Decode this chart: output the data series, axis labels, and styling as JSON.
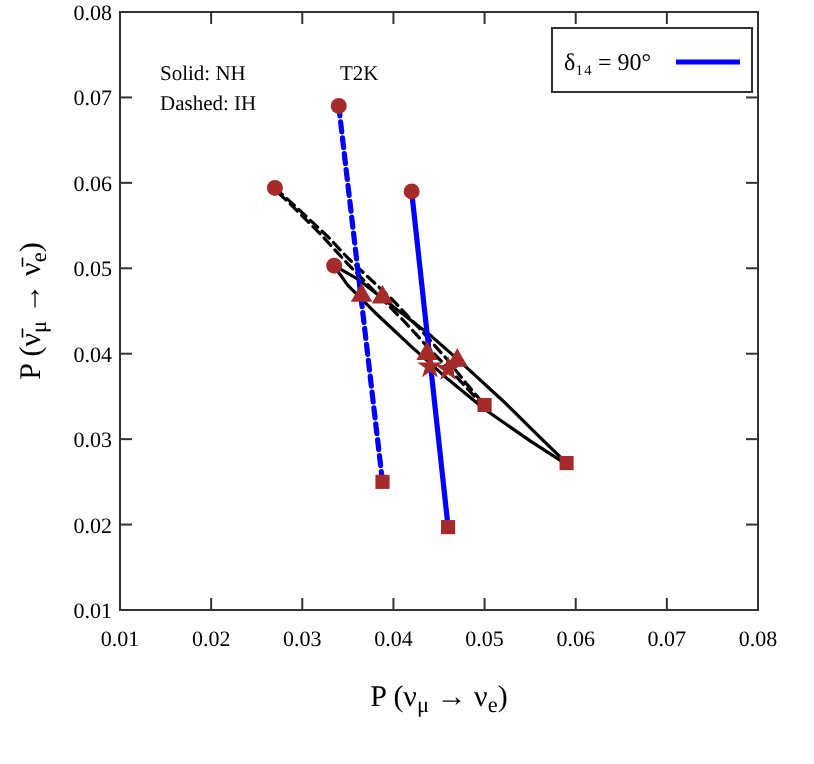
{
  "chart_data": {
    "type": "line",
    "xlabel": "P (ν$_{μ}$ → ν$_{e}$)",
    "ylabel": "P (ν̄$_{μ}$ → ν̄$_{e}$)",
    "xlim": [
      0.01,
      0.08
    ],
    "ylim": [
      0.01,
      0.08
    ],
    "xticks": [
      {
        "value": 0.01,
        "label": "0.01"
      },
      {
        "value": 0.02,
        "label": "0.02"
      },
      {
        "value": 0.03,
        "label": "0.03"
      },
      {
        "value": 0.04,
        "label": "0.04"
      },
      {
        "value": 0.05,
        "label": "0.05"
      },
      {
        "value": 0.06,
        "label": "0.06"
      },
      {
        "value": 0.07,
        "label": "0.07"
      },
      {
        "value": 0.08,
        "label": "0.08"
      }
    ],
    "yticks": [
      {
        "value": 0.01,
        "label": "0.01"
      },
      {
        "value": 0.02,
        "label": "0.02"
      },
      {
        "value": 0.03,
        "label": "0.03"
      },
      {
        "value": 0.04,
        "label": "0.04"
      },
      {
        "value": 0.05,
        "label": "0.05"
      },
      {
        "value": 0.06,
        "label": "0.06"
      },
      {
        "value": 0.07,
        "label": "0.07"
      },
      {
        "value": 0.08,
        "label": "0.08"
      }
    ],
    "grid": false,
    "legend": "top right",
    "annotations": [
      "Solid: NH",
      "Dashed: IH",
      "T2K"
    ],
    "series": [
      {
        "type": "line",
        "line_style": "solid",
        "color": "#000000",
        "x": [
          0.0335,
          0.036,
          0.04,
          0.044,
          0.047,
          0.052,
          0.056,
          0.059
        ],
        "values": [
          0.0503,
          0.0488,
          0.0455,
          0.0422,
          0.0394,
          0.0345,
          0.0303,
          0.0272
        ]
      },
      {
        "type": "line",
        "line_style": "solid",
        "color": "#000000",
        "x": [
          0.0338,
          0.035,
          0.038,
          0.042,
          0.046,
          0.05,
          0.055,
          0.0586
        ],
        "values": [
          0.0498,
          0.048,
          0.0448,
          0.0408,
          0.037,
          0.0335,
          0.0298,
          0.0273
        ]
      },
      {
        "type": "line",
        "line_style": "dashed",
        "color": "#000000",
        "x": [
          0.027,
          0.029,
          0.031,
          0.033,
          0.035,
          0.037,
          0.04,
          0.043,
          0.046,
          0.048,
          0.05
        ],
        "values": [
          0.0594,
          0.0575,
          0.0555,
          0.0535,
          0.0512,
          0.0492,
          0.0462,
          0.0428,
          0.0392,
          0.0365,
          0.034
        ]
      },
      {
        "type": "line",
        "line_style": "dashed",
        "color": "#000000",
        "x": [
          0.0274,
          0.029,
          0.032,
          0.035,
          0.038,
          0.041,
          0.044,
          0.047,
          0.0496
        ],
        "values": [
          0.0588,
          0.0572,
          0.054,
          0.0505,
          0.0472,
          0.044,
          0.0405,
          0.0372,
          0.0342
        ]
      },
      {
        "type": "line",
        "line_style": "solid",
        "color": "#0000ff",
        "name": "δ₁₄ = 90°",
        "x": [
          0.042,
          0.046
        ],
        "values": [
          0.059,
          0.0197
        ]
      },
      {
        "type": "line",
        "line_style": "dashed",
        "color": "#0000ff",
        "x": [
          0.034,
          0.0388
        ],
        "values": [
          0.069,
          0.025
        ]
      },
      {
        "type": "scatter",
        "marker": "circle",
        "color": "#a52a2a",
        "x": [
          0.027,
          0.0335,
          0.034,
          0.042
        ],
        "values": [
          0.0594,
          0.0503,
          0.069,
          0.059
        ]
      },
      {
        "type": "scatter",
        "marker": "square",
        "color": "#a52a2a",
        "x": [
          0.05,
          0.059,
          0.0388,
          0.046
        ],
        "values": [
          0.034,
          0.0272,
          0.025,
          0.0197
        ]
      },
      {
        "type": "scatter",
        "marker": "triangle",
        "color": "#a52a2a",
        "x": [
          0.0365,
          0.0388,
          0.0437,
          0.047
        ],
        "values": [
          0.0468,
          0.0466,
          0.04,
          0.0392
        ]
      },
      {
        "type": "scatter",
        "marker": "star",
        "color": "#a52a2a",
        "x": [
          0.044,
          0.046
        ],
        "values": [
          0.0385,
          0.0382
        ]
      }
    ]
  }
}
